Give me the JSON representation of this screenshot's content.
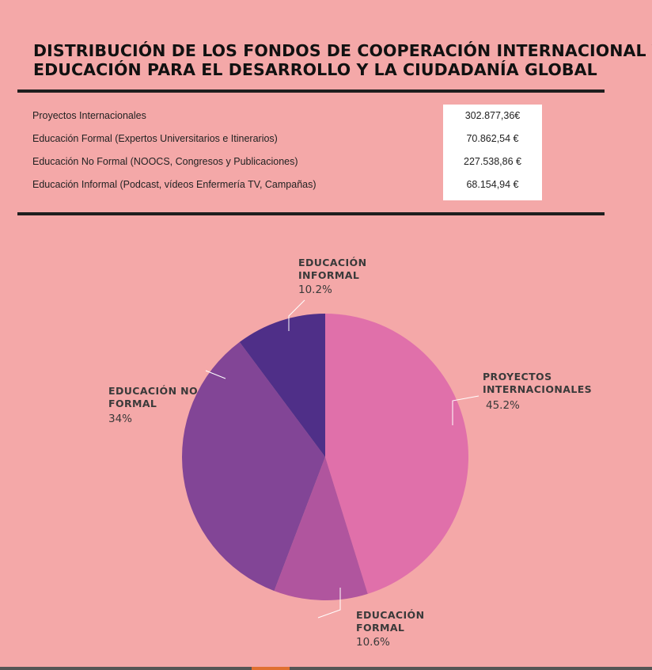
{
  "title": {
    "line1": "DISTRIBUCIÓN DE LOS FONDOS DE COOPERACIÓN INTERNACIONAL Y",
    "line2": "EDUCACIÓN PARA EL DESARROLLO Y LA CIUDADANÍA GLOBAL"
  },
  "table": {
    "rows": [
      {
        "label": "Proyectos Internacionales",
        "value": "302.877,36€"
      },
      {
        "label": "Educación Formal (Expertos Universitarios e Itinerarios)",
        "value": "70.862,54 €"
      },
      {
        "label": "Educación No Formal (NOOCS, Congresos y Publicaciones)",
        "value": "227.538,86 €"
      },
      {
        "label": "Educación Informal (Podcast, vídeos Enfermería TV, Campañas)",
        "value": "68.154,94 €"
      }
    ]
  },
  "chart_data": {
    "type": "pie",
    "slices": [
      {
        "name": "PROYECTOS INTERNACIONALES",
        "label_lines": [
          "PROYECTOS",
          "INTERNACIONALES"
        ],
        "value": 45.2,
        "value_label": "45.2%",
        "color": "#e070aa"
      },
      {
        "name": "EDUCACIÓN FORMAL",
        "label_lines": [
          "EDUCACIÓN",
          "FORMAL"
        ],
        "value": 10.6,
        "value_label": "10.6%",
        "color": "#b0559e"
      },
      {
        "name": "EDUCACIÓN NO FORMAL",
        "label_lines": [
          "EDUCACIÓN NO",
          "FORMAL"
        ],
        "value": 34,
        "value_label": "34%",
        "color": "#824596"
      },
      {
        "name": "EDUCACIÓN INFORMAL",
        "label_lines": [
          "EDUCACIÓN",
          "INFORMAL"
        ],
        "value": 10.2,
        "value_label": "10.2%",
        "color": "#4f2f88"
      }
    ],
    "start": "12 o'clock",
    "direction": "clockwise"
  }
}
